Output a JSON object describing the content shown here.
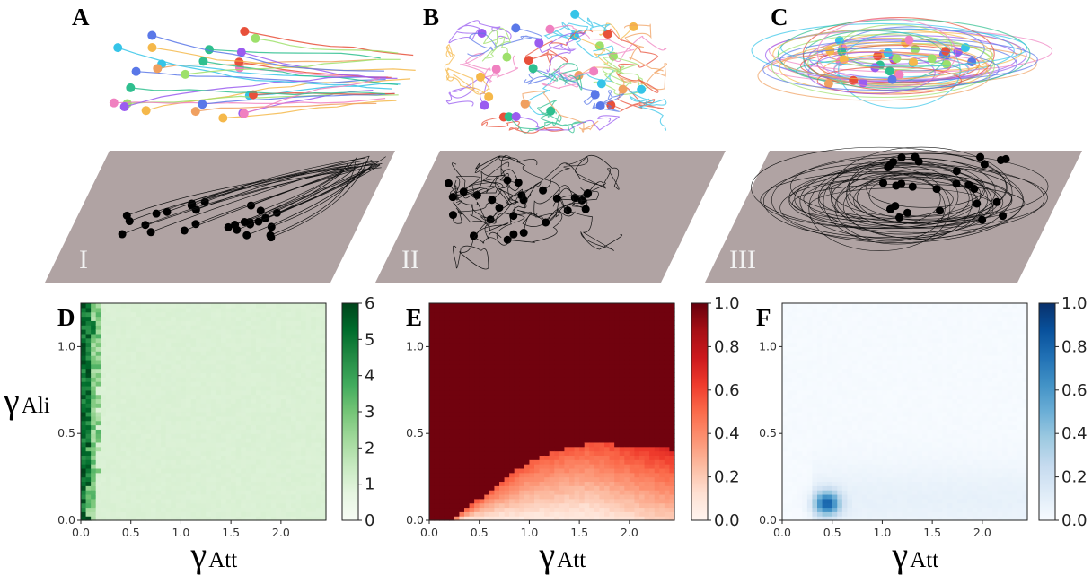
{
  "panels": {
    "letters": [
      "A",
      "B",
      "C",
      "D",
      "E",
      "F"
    ],
    "regimes": [
      "I",
      "II",
      "III"
    ]
  },
  "axes": {
    "x_symbol": "γ",
    "x_subscript": "Att",
    "y_symbol": "γ",
    "y_subscript": "Ali"
  },
  "colors": {
    "plane": "#b0a3a3",
    "trail_palette": [
      "#e8503a",
      "#9a5cf0",
      "#35c4e8",
      "#9de06a",
      "#f5b84a",
      "#f080c0",
      "#5a78e8",
      "#2fbf8f",
      "#f0a060"
    ],
    "green_scale": [
      "#f7fcf5",
      "#e5f5e0",
      "#c7e9c0",
      "#a1d99b",
      "#74c476",
      "#41ab5d",
      "#238b45",
      "#006d2c",
      "#00441b"
    ],
    "red_scale": [
      "#fff5f0",
      "#fee0d2",
      "#fcbba1",
      "#fc9272",
      "#fb6a4a",
      "#ef3b2c",
      "#cb181d",
      "#a50f15",
      "#67000d"
    ],
    "blue_scale": [
      "#f7fbff",
      "#deebf7",
      "#c6dbef",
      "#9ecae1",
      "#6baed6",
      "#4292c6",
      "#2171b5",
      "#08519c",
      "#08306b"
    ]
  },
  "chart_data": [
    {
      "id": "D",
      "type": "heatmap",
      "xlabel": "γAtt",
      "ylabel": "γAli",
      "xlim": [
        0,
        2.45
      ],
      "ylim": [
        0,
        1.25
      ],
      "xticks": [
        "0.0",
        "0.5",
        "1.0",
        "1.5",
        "2.0"
      ],
      "yticks": [
        "0.0",
        "0.5",
        "1.0"
      ],
      "colorbar": {
        "min": 0,
        "max": 6,
        "ticks": [
          "0",
          "1",
          "2",
          "3",
          "4",
          "5",
          "6"
        ],
        "scale": "green"
      },
      "description_values": {
        "high_region": "γAtt below 0.2",
        "high_value": 6,
        "background_value": 1
      }
    },
    {
      "id": "E",
      "type": "heatmap",
      "xlabel": "γAtt",
      "ylabel": "",
      "xlim": [
        0,
        2.45
      ],
      "ylim": [
        0,
        1.25
      ],
      "xticks": [
        "0.0",
        "0.5",
        "1.0",
        "1.5",
        "2.0"
      ],
      "yticks": [
        "0.0",
        "0.5",
        "1.0"
      ],
      "colorbar": {
        "min": 0,
        "max": 1,
        "ticks": [
          "0.0",
          "0.2",
          "0.4",
          "0.6",
          "0.8",
          "1.0"
        ],
        "scale": "red"
      },
      "boundary": {
        "x": [
          0.2,
          0.4,
          0.6,
          0.8,
          1.0,
          1.2,
          1.4,
          1.6,
          1.8,
          2.0,
          2.2,
          2.45
        ],
        "y": [
          0.0,
          0.08,
          0.17,
          0.26,
          0.34,
          0.39,
          0.42,
          0.44,
          0.44,
          0.43,
          0.42,
          0.41
        ]
      }
    },
    {
      "id": "F",
      "type": "heatmap",
      "xlabel": "γAtt",
      "ylabel": "",
      "xlim": [
        0,
        2.45
      ],
      "ylim": [
        0,
        1.25
      ],
      "xticks": [
        "0.0",
        "0.5",
        "1.0",
        "1.5",
        "2.0"
      ],
      "yticks": [
        "0.0",
        "0.5",
        "1.0"
      ],
      "colorbar": {
        "min": 0,
        "max": 1,
        "ticks": [
          "0.0",
          "0.2",
          "0.4",
          "0.6",
          "0.8",
          "1.0"
        ],
        "scale": "blue"
      },
      "peak": {
        "x": 0.45,
        "y": 0.1,
        "value": 0.75
      }
    }
  ]
}
